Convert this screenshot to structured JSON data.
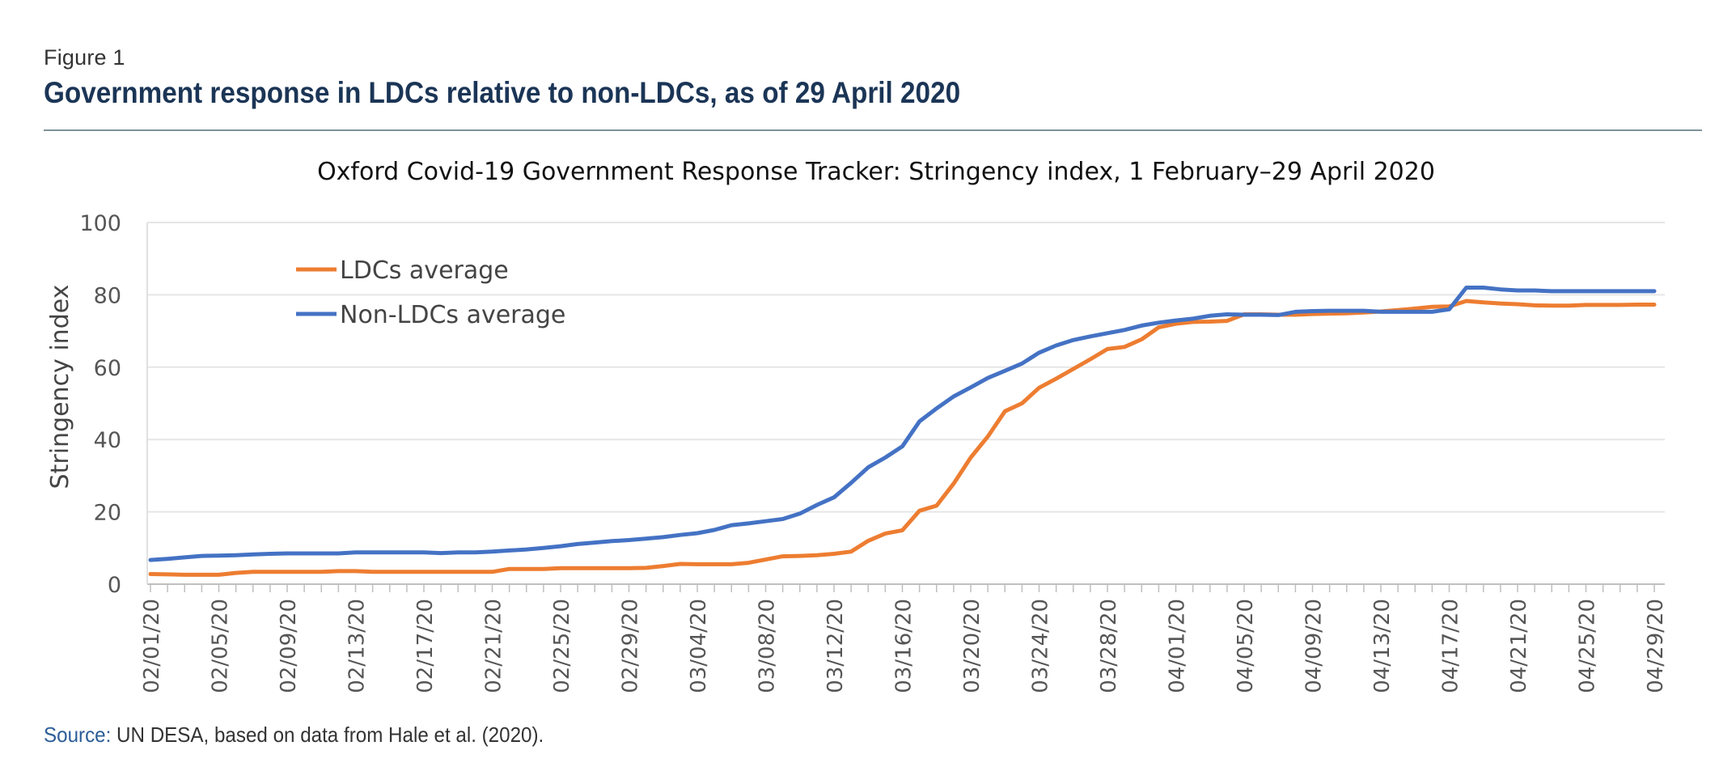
{
  "figure_label": "Figure 1",
  "figure_title": "Government response in LDCs relative to non-LDCs, as of 29 April 2020",
  "source": {
    "label": "Source:",
    "text": " UN DESA, based on data from Hale et al. (2020)."
  },
  "colors": {
    "title": "#1b3556",
    "rule": "#7f9298",
    "ldc": "#ed7d31",
    "non_ldc": "#4472c4",
    "grid": "#e6e6e6",
    "source_label": "#2b5e97"
  },
  "chart_data": {
    "type": "line",
    "title": "Oxford Covid-19 Government Response Tracker: Stringency index, 1 February–29 April 2020",
    "xlabel": "",
    "ylabel": "Stringency index",
    "ylim": [
      0,
      100
    ],
    "yticks": [
      0,
      20,
      40,
      60,
      80,
      100
    ],
    "grid": true,
    "legend_position": "top-left",
    "x_start": "02/01/20",
    "x_end": "04/29/20",
    "x": [
      "02/01/20",
      "02/02/20",
      "02/03/20",
      "02/04/20",
      "02/05/20",
      "02/06/20",
      "02/07/20",
      "02/08/20",
      "02/09/20",
      "02/10/20",
      "02/11/20",
      "02/12/20",
      "02/13/20",
      "02/14/20",
      "02/15/20",
      "02/16/20",
      "02/17/20",
      "02/18/20",
      "02/19/20",
      "02/20/20",
      "02/21/20",
      "02/22/20",
      "02/23/20",
      "02/24/20",
      "02/25/20",
      "02/26/20",
      "02/27/20",
      "02/28/20",
      "02/29/20",
      "03/01/20",
      "03/02/20",
      "03/03/20",
      "03/04/20",
      "03/05/20",
      "03/06/20",
      "03/07/20",
      "03/08/20",
      "03/09/20",
      "03/10/20",
      "03/11/20",
      "03/12/20",
      "03/13/20",
      "03/14/20",
      "03/15/20",
      "03/16/20",
      "03/17/20",
      "03/18/20",
      "03/19/20",
      "03/20/20",
      "03/21/20",
      "03/22/20",
      "03/23/20",
      "03/24/20",
      "03/25/20",
      "03/26/20",
      "03/27/20",
      "03/28/20",
      "03/29/20",
      "03/30/20",
      "03/31/20",
      "04/01/20",
      "04/02/20",
      "04/03/20",
      "04/04/20",
      "04/05/20",
      "04/06/20",
      "04/07/20",
      "04/08/20",
      "04/09/20",
      "04/10/20",
      "04/11/20",
      "04/12/20",
      "04/13/20",
      "04/14/20",
      "04/15/20",
      "04/16/20",
      "04/17/20",
      "04/18/20",
      "04/19/20",
      "04/20/20",
      "04/21/20",
      "04/22/20",
      "04/23/20",
      "04/24/20",
      "04/25/20",
      "04/26/20",
      "04/27/20",
      "04/28/20",
      "04/29/20"
    ],
    "xtick_labels": [
      "02/01/20",
      "02/05/20",
      "02/09/20",
      "02/13/20",
      "02/17/20",
      "02/21/20",
      "02/25/20",
      "02/29/20",
      "03/04/20",
      "03/08/20",
      "03/12/20",
      "03/16/20",
      "03/20/20",
      "03/24/20",
      "03/28/20",
      "04/01/20",
      "04/05/20",
      "04/09/20",
      "04/13/20",
      "04/17/20",
      "04/21/20",
      "04/25/20",
      "04/29/20"
    ],
    "series": [
      {
        "name": "LDCs average",
        "color": "#ed7d31",
        "values": [
          2.8,
          2.7,
          2.6,
          2.6,
          2.6,
          3.1,
          3.4,
          3.4,
          3.4,
          3.4,
          3.4,
          3.6,
          3.6,
          3.4,
          3.4,
          3.4,
          3.4,
          3.4,
          3.4,
          3.4,
          3.4,
          4.2,
          4.2,
          4.2,
          4.4,
          4.4,
          4.4,
          4.4,
          4.4,
          4.5,
          5.0,
          5.6,
          5.5,
          5.5,
          5.5,
          5.9,
          6.8,
          7.7,
          7.8,
          8.0,
          8.4,
          9.0,
          12.0,
          14.0,
          14.9,
          20.3,
          21.7,
          27.8,
          35.0,
          40.8,
          47.8,
          50.0,
          54.3,
          56.8,
          59.5,
          62.2,
          65.0,
          65.6,
          67.7,
          71.0,
          72.0,
          72.5,
          72.6,
          72.8,
          74.6,
          74.6,
          74.5,
          74.5,
          74.7,
          74.8,
          74.9,
          75.1,
          75.4,
          75.8,
          76.2,
          76.7,
          76.8,
          78.3,
          77.9,
          77.6,
          77.4,
          77.1,
          77.0,
          77.0,
          77.2,
          77.2,
          77.2,
          77.3,
          77.3
        ]
      },
      {
        "name": "Non-LDCs average",
        "color": "#4472c4",
        "values": [
          6.7,
          7.0,
          7.4,
          7.8,
          7.9,
          8.0,
          8.2,
          8.4,
          8.5,
          8.5,
          8.5,
          8.5,
          8.8,
          8.8,
          8.8,
          8.8,
          8.8,
          8.6,
          8.8,
          8.8,
          9.0,
          9.3,
          9.6,
          10.0,
          10.5,
          11.1,
          11.5,
          11.9,
          12.2,
          12.6,
          13.0,
          13.6,
          14.1,
          15.0,
          16.3,
          16.8,
          17.4,
          18.0,
          19.5,
          21.9,
          24.0,
          28.0,
          32.3,
          35.0,
          38.1,
          45.0,
          48.6,
          51.9,
          54.4,
          57.0,
          59.0,
          61.0,
          64.0,
          66.0,
          67.5,
          68.5,
          69.4,
          70.3,
          71.5,
          72.3,
          72.9,
          73.4,
          74.2,
          74.6,
          74.5,
          74.5,
          74.4,
          75.3,
          75.5,
          75.6,
          75.6,
          75.6,
          75.3,
          75.3,
          75.3,
          75.3,
          76.0,
          82.0,
          82.0,
          81.5,
          81.2,
          81.2,
          81.0,
          81.0,
          81.0,
          81.0,
          81.0,
          81.0,
          81.0
        ]
      }
    ]
  }
}
